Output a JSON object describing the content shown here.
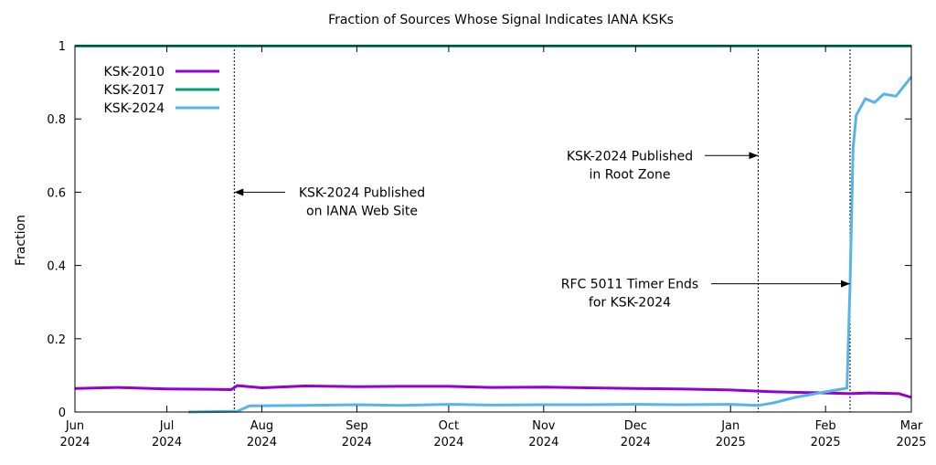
{
  "chart_data": {
    "type": "line",
    "title": "Fraction of Sources Whose Signal Indicates IANA KSKs",
    "xlabel": "",
    "ylabel": "Fraction",
    "ylim": [
      0,
      1
    ],
    "yticks": [
      "0",
      "0.2",
      "0.4",
      "0.6",
      "0.8",
      "1"
    ],
    "xlim": [
      "2024-06-01",
      "2025-03-01"
    ],
    "xticks": [
      {
        "date": "2024-06-01",
        "label1": "Jun",
        "label2": "2024"
      },
      {
        "date": "2024-07-01",
        "label1": "Jul",
        "label2": "2024"
      },
      {
        "date": "2024-08-01",
        "label1": "Aug",
        "label2": "2024"
      },
      {
        "date": "2024-09-01",
        "label1": "Sep",
        "label2": "2024"
      },
      {
        "date": "2024-10-01",
        "label1": "Oct",
        "label2": "2024"
      },
      {
        "date": "2024-11-01",
        "label1": "Nov",
        "label2": "2024"
      },
      {
        "date": "2024-12-01",
        "label1": "Dec",
        "label2": "2024"
      },
      {
        "date": "2025-01-01",
        "label1": "Jan",
        "label2": "2025"
      },
      {
        "date": "2025-02-01",
        "label1": "Feb",
        "label2": "2025"
      },
      {
        "date": "2025-03-01",
        "label1": "Mar",
        "label2": "2025"
      }
    ],
    "grid": false,
    "legend_position": "top-left",
    "series": [
      {
        "name": "KSK-2010",
        "color": "#9400d3",
        "points": [
          [
            "2024-06-01",
            0.064
          ],
          [
            "2024-06-15",
            0.067
          ],
          [
            "2024-07-01",
            0.063
          ],
          [
            "2024-07-15",
            0.062
          ],
          [
            "2024-07-22",
            0.061
          ],
          [
            "2024-07-24",
            0.072
          ],
          [
            "2024-08-01",
            0.066
          ],
          [
            "2024-08-15",
            0.071
          ],
          [
            "2024-09-01",
            0.069
          ],
          [
            "2024-09-15",
            0.07
          ],
          [
            "2024-10-01",
            0.07
          ],
          [
            "2024-10-15",
            0.067
          ],
          [
            "2024-11-01",
            0.068
          ],
          [
            "2024-11-15",
            0.066
          ],
          [
            "2024-12-01",
            0.064
          ],
          [
            "2024-12-15",
            0.063
          ],
          [
            "2025-01-01",
            0.06
          ],
          [
            "2025-01-15",
            0.055
          ],
          [
            "2025-02-01",
            0.052
          ],
          [
            "2025-02-09",
            0.05
          ],
          [
            "2025-02-15",
            0.052
          ],
          [
            "2025-02-25",
            0.05
          ],
          [
            "2025-03-01",
            0.04
          ]
        ]
      },
      {
        "name": "KSK-2017",
        "color": "#009e73",
        "points": [
          [
            "2024-06-01",
            0.999
          ],
          [
            "2025-03-01",
            0.999
          ]
        ]
      },
      {
        "name": "KSK-2024",
        "color": "#56b4e9",
        "points": [
          [
            "2024-07-08",
            0.0
          ],
          [
            "2024-07-24",
            0.002
          ],
          [
            "2024-07-28",
            0.017
          ],
          [
            "2024-08-15",
            0.018
          ],
          [
            "2024-09-01",
            0.02
          ],
          [
            "2024-09-15",
            0.018
          ],
          [
            "2024-10-01",
            0.021
          ],
          [
            "2024-10-15",
            0.019
          ],
          [
            "2024-11-01",
            0.02
          ],
          [
            "2024-11-15",
            0.02
          ],
          [
            "2024-12-01",
            0.021
          ],
          [
            "2024-12-15",
            0.02
          ],
          [
            "2025-01-01",
            0.021
          ],
          [
            "2025-01-10",
            0.018
          ],
          [
            "2025-01-15",
            0.025
          ],
          [
            "2025-01-22",
            0.04
          ],
          [
            "2025-02-01",
            0.055
          ],
          [
            "2025-02-08",
            0.065
          ],
          [
            "2025-02-09",
            0.35
          ],
          [
            "2025-02-10",
            0.72
          ],
          [
            "2025-02-11",
            0.81
          ],
          [
            "2025-02-14",
            0.855
          ],
          [
            "2025-02-17",
            0.845
          ],
          [
            "2025-02-20",
            0.868
          ],
          [
            "2025-02-24",
            0.862
          ],
          [
            "2025-03-01",
            0.915
          ]
        ]
      }
    ],
    "vlines": [
      "2024-07-23",
      "2025-01-10",
      "2025-02-09"
    ],
    "annotations": [
      {
        "lines": [
          "KSK-2024 Published",
          "on IANA Web Site"
        ],
        "arrow_to_date": "2024-07-23",
        "y": 0.6,
        "arrow": "left"
      },
      {
        "lines": [
          "KSK-2024 Published",
          "in Root Zone"
        ],
        "arrow_to_date": "2025-01-10",
        "y": 0.7,
        "arrow": "right"
      },
      {
        "lines": [
          "RFC 5011 Timer Ends",
          "for KSK-2024"
        ],
        "arrow_to_date": "2025-02-09",
        "y": 0.35,
        "arrow": "right"
      }
    ]
  }
}
